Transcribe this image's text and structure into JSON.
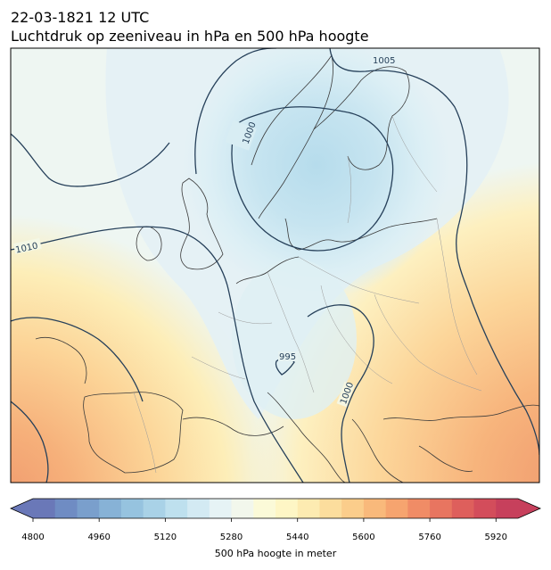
{
  "header": {
    "datetime": "22-03-1821 12 UTC",
    "title": "Luchtdruk op zeeniveau in hPa en 500 hPa hoogte"
  },
  "map": {
    "isobar_labels": [
      "1005",
      "1000",
      "1010",
      "995",
      "1000"
    ],
    "isobar_color": "#26405a",
    "coastline_color": "#3a3a3a",
    "border_color": "#9a9a9a"
  },
  "colorbar": {
    "title": "500 hPa hoogte in meter",
    "tick_labels": [
      "4800",
      "4960",
      "5120",
      "5280",
      "5440",
      "5600",
      "5760",
      "5920"
    ],
    "colors": [
      "#6a78b8",
      "#6f8cc3",
      "#7a9fcc",
      "#87b2d6",
      "#96c3df",
      "#a9d2e7",
      "#bee0ee",
      "#d3eaf3",
      "#e6f3f5",
      "#f2f7ec",
      "#fbfad8",
      "#fef6c5",
      "#fdebb1",
      "#fcdd9d",
      "#fbcd8b",
      "#f9b97b",
      "#f6a46f",
      "#f08c66",
      "#e87560",
      "#de5f5c",
      "#d34d5b",
      "#c7405c"
    ]
  }
}
